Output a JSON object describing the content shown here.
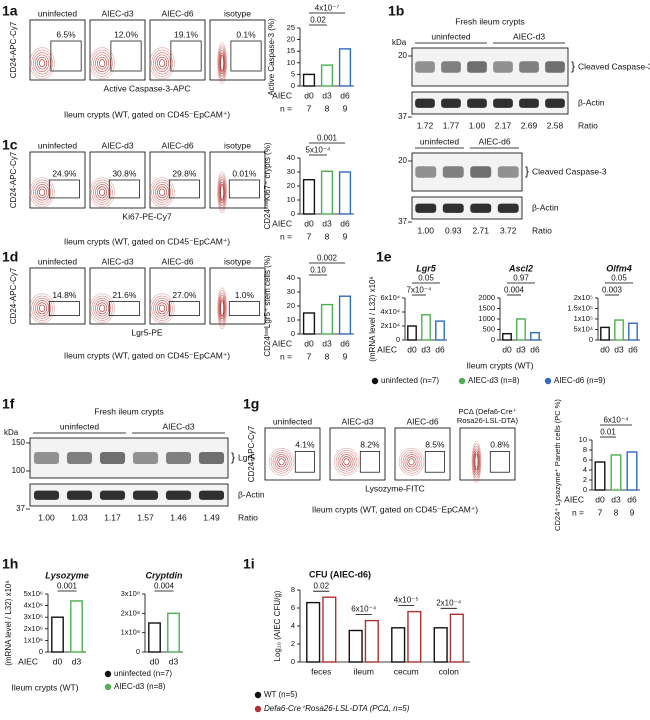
{
  "panel_labels": [
    "1a",
    "1b",
    "1c",
    "1d",
    "1e",
    "1f",
    "1g",
    "1h",
    "1i"
  ],
  "fig1a": {
    "flow": {
      "panels": [
        {
          "title": "uninfected",
          "percent": "6.5%"
        },
        {
          "title": "AIEC-d3",
          "percent": "12.0%"
        },
        {
          "title": "AIEC-d6",
          "percent": "19.1%"
        },
        {
          "title": "isotype",
          "percent": "0.1%"
        }
      ],
      "y_label": "CD24-APC-Cy7",
      "x_label": "Active Caspase-3-APC",
      "caption": "Ileum crypts (WT, gated on CD45⁻EpCAM⁺)"
    },
    "chart": {
      "type": "bar",
      "y_label": "Active Caspase-3 (%)",
      "categories": [
        "d0",
        "d3",
        "d6"
      ],
      "values": [
        5,
        9,
        16
      ],
      "colors": [
        "#111111",
        "#4caf50",
        "#2f6cc0"
      ],
      "ylim": [
        0,
        25
      ],
      "yticks": [
        0,
        5,
        10,
        15,
        20,
        25
      ],
      "group_label": "AIEC",
      "n_label": "n =",
      "n": [
        7,
        8,
        9
      ],
      "pvalues": [
        "4x10⁻⁷",
        "0.02"
      ]
    }
  },
  "fig1b": {
    "blots": [
      {
        "header": "Fresh ileum crypts",
        "groups": [
          "uninfected",
          "AIEC-d3"
        ],
        "kda_label": "kDa",
        "markers": [
          20,
          37
        ],
        "bands": [
          "Cleaved Caspase-3",
          "β-Actin"
        ],
        "ratios": [
          "1.72",
          "1.77",
          "1.00",
          "2.17",
          "2.69",
          "2.58"
        ],
        "ratio_label": "Ratio"
      },
      {
        "groups": [
          "uninfected",
          "AIEC-d6"
        ],
        "markers": [
          20,
          37
        ],
        "bands": [
          "Cleaved Caspase-3",
          "β-Actin"
        ],
        "ratios": [
          "1.00",
          "0.93",
          "2.71",
          "3.72"
        ],
        "ratio_label": "Ratio"
      }
    ]
  },
  "fig1c": {
    "flow": {
      "panels": [
        {
          "title": "uninfected",
          "percent": "24.9%"
        },
        {
          "title": "AIEC-d3",
          "percent": "30.8%"
        },
        {
          "title": "AIEC-d6",
          "percent": "29.8%"
        },
        {
          "title": "isotype",
          "percent": "0.01%"
        }
      ],
      "y_label": "CD24-APC-Cy7",
      "x_label": "Ki67-PE-Cy7",
      "caption": "Ileum crypts (WT, gated on CD45⁻EpCAM⁺)"
    },
    "chart": {
      "type": "bar",
      "y_label": "CD24ˡᵒʷKi67⁺ crypts (%)",
      "categories": [
        "d0",
        "d3",
        "d6"
      ],
      "values": [
        24.5,
        30.5,
        30
      ],
      "colors": [
        "#111111",
        "#4caf50",
        "#2f6cc0"
      ],
      "ylim": [
        0,
        40
      ],
      "yticks": [
        0,
        10,
        20,
        30,
        40
      ],
      "group_label": "AIEC",
      "n_label": "n =",
      "n": [
        7,
        8,
        9
      ],
      "pvalues": [
        "0.001",
        "5x10⁻⁴"
      ]
    }
  },
  "fig1d": {
    "flow": {
      "panels": [
        {
          "title": "uninfected",
          "percent": "14.8%"
        },
        {
          "title": "AIEC-d3",
          "percent": "21.6%"
        },
        {
          "title": "AIEC-d6",
          "percent": "27.0%"
        },
        {
          "title": "isotype",
          "percent": "1.0%"
        }
      ],
      "y_label": "CD24-APC-Cy7",
      "x_label": "Lgr5-PE",
      "caption": "Ileum crypts (WT, gated on CD45⁻EpCAM⁺)"
    },
    "chart": {
      "type": "bar",
      "y_label": "CD24ˡᵒʷLgr5⁺ stem cells (%)",
      "categories": [
        "d0",
        "d3",
        "d6"
      ],
      "values": [
        15,
        21,
        27
      ],
      "colors": [
        "#111111",
        "#4caf50",
        "#2f6cc0"
      ],
      "ylim": [
        0,
        40
      ],
      "yticks": [
        0,
        10,
        20,
        30,
        40
      ],
      "group_label": "AIEC",
      "n_label": "n =",
      "n": [
        7,
        8,
        9
      ],
      "pvalues": [
        "0.002",
        "0.10"
      ]
    }
  },
  "fig1e": {
    "y_label": "(mRNA level / L32) x10⁶",
    "group_label": "AIEC",
    "caption": "Ileum crypts (WT)",
    "legend": [
      {
        "name": "uninfected (n=7)",
        "color": "#111111"
      },
      {
        "name": "AIEC-d3 (n=8)",
        "color": "#4caf50"
      },
      {
        "name": "AIEC-d6 (n=9)",
        "color": "#2f6cc0"
      }
    ],
    "charts": [
      {
        "type": "bar",
        "title": "Lgr5",
        "categories": [
          "d0",
          "d3",
          "d6"
        ],
        "values": [
          20000,
          36000,
          27000
        ],
        "colors": [
          "#111111",
          "#4caf50",
          "#2f6cc0"
        ],
        "ylim": [
          0,
          60000
        ],
        "yticks": [
          0,
          {
            "value": 20000,
            "label": "2x10⁴"
          },
          {
            "value": 40000,
            "label": "4x10⁴"
          },
          {
            "value": 60000,
            "label": "6x10⁴"
          }
        ],
        "pvalues": [
          "0.05",
          "7x10⁻⁴"
        ]
      },
      {
        "type": "bar",
        "title": "Ascl2",
        "categories": [
          "d0",
          "d3",
          "d6"
        ],
        "values": [
          300,
          1000,
          350
        ],
        "colors": [
          "#111111",
          "#4caf50",
          "#2f6cc0"
        ],
        "ylim": [
          0,
          2000
        ],
        "yticks": [
          0,
          500,
          1000,
          1500,
          2000
        ],
        "pvalues": [
          "0.97",
          "0.004"
        ]
      },
      {
        "type": "bar",
        "title": "Olfm4",
        "categories": [
          "d0",
          "d3",
          "d6"
        ],
        "values": [
          60000,
          95000,
          80000
        ],
        "colors": [
          "#111111",
          "#4caf50",
          "#2f6cc0"
        ],
        "ylim": [
          0,
          200000
        ],
        "yticks": [
          0,
          {
            "value": 50000,
            "label": "5x10⁴"
          },
          {
            "value": 100000,
            "label": "1x10⁵"
          },
          {
            "value": 150000,
            "label": "1.5x10⁵"
          },
          {
            "value": 200000,
            "label": "2x10⁵"
          }
        ],
        "pvalues": [
          "0.05",
          "0.003"
        ]
      }
    ]
  },
  "fig1f": {
    "blots": [
      {
        "header": "Fresh ileum crypts",
        "groups": [
          "uninfected",
          "AIEC-d3"
        ],
        "kda_label": "kDa",
        "markers": [
          150,
          100,
          37
        ],
        "bands": [
          "Lgr5",
          "β-Actin"
        ],
        "ratios": [
          "1.00",
          "1.03",
          "1.17",
          "1.57",
          "1.46",
          "1.49"
        ],
        "ratio_label": "Ratio"
      }
    ]
  },
  "fig1g": {
    "flow": {
      "panels": [
        {
          "title": "uninfected",
          "percent": "4.1%"
        },
        {
          "title": "AIEC-d3",
          "percent": "8.2%"
        },
        {
          "title": "AIEC-d6",
          "percent": "8.5%"
        },
        {
          "title": [
            "PCΔ (Defa6-Cre⁺",
            "Rosa26-LSL-DTA)"
          ],
          "percent": "0.8%"
        }
      ],
      "y_label": "CD24-APC-Cy7",
      "x_label": "Lysozyme-FITC",
      "caption": "Ileum crypts (WT, gated on CD45⁻EpCAM⁺)"
    },
    "chart": {
      "type": "bar",
      "y_label": "CD24⁺ Lysozyme⁺ Paneth cells (PC %)",
      "categories": [
        "d0",
        "d3",
        "d6"
      ],
      "values": [
        5.6,
        7,
        7.6
      ],
      "colors": [
        "#111111",
        "#4caf50",
        "#2f6cc0"
      ],
      "ylim": [
        0,
        10
      ],
      "yticks": [
        0,
        2,
        4,
        6,
        8,
        10
      ],
      "group_label": "AIEC",
      "n_label": "n =",
      "n": [
        7,
        8,
        9
      ],
      "pvalues": [
        "6x10⁻⁴",
        "0.01"
      ]
    }
  },
  "fig1h": {
    "y_label": "(mRNA level / L32) x10⁶",
    "group_label": "AIEC",
    "caption": "Ileum crypts (WT)",
    "legend": [
      {
        "name": "uninfected (n=7)",
        "color": "#111111"
      },
      {
        "name": "AIEC-d3 (n=8)",
        "color": "#4caf50"
      }
    ],
    "charts": [
      {
        "type": "bar",
        "title": "Lysozyme",
        "categories": [
          "d0",
          "d3"
        ],
        "values": [
          3000000,
          4400000
        ],
        "colors": [
          "#111111",
          "#4caf50"
        ],
        "ylim": [
          0,
          5000000
        ],
        "yticks": [
          0,
          {
            "value": 1000000,
            "label": "1x10⁶"
          },
          {
            "value": 2000000,
            "label": "2x10⁶"
          },
          {
            "value": 3000000,
            "label": "3x10⁶"
          },
          {
            "value": 4000000,
            "label": "4x10⁶"
          },
          {
            "value": 5000000,
            "label": "5x10⁶"
          }
        ],
        "pvalues": [
          "0.001"
        ]
      },
      {
        "type": "bar",
        "title": "Cryptdin",
        "categories": [
          "d0",
          "d3"
        ],
        "values": [
          150000000,
          200000000
        ],
        "colors": [
          "#111111",
          "#4caf50"
        ],
        "ylim": [
          0,
          300000000
        ],
        "yticks": [
          0,
          {
            "value": 100000000,
            "label": "1x10⁸"
          },
          {
            "value": 200000000,
            "label": "2x10⁸"
          },
          {
            "value": 300000000,
            "label": "3x10⁸"
          }
        ],
        "pvalues": [
          "0.004"
        ]
      }
    ]
  },
  "fig1i": {
    "chart": {
      "type": "grouped_bar",
      "title": "CFU (AIEC-d6)",
      "y_label": "Log₁₀ (AIEC CFU/g)",
      "categories": [
        "feces",
        "ileum",
        "cecum",
        "colon"
      ],
      "series": [
        {
          "name": "WT (n=5)",
          "color": "#111111",
          "values": [
            6.6,
            3.5,
            3.8,
            3.8
          ]
        },
        {
          "name": "Defa6-Cre⁺Rosa26-LSL-DTA (PCΔ, n=5)",
          "color": "#b03030",
          "values": [
            7.2,
            4.6,
            5.6,
            5.3
          ]
        }
      ],
      "ylim": [
        0,
        8
      ],
      "yticks": [
        0,
        2,
        4,
        6,
        8
      ],
      "pvalues": [
        "0.02",
        "6x10⁻⁴",
        "4x10⁻⁵",
        "2x10⁻⁴"
      ]
    }
  }
}
